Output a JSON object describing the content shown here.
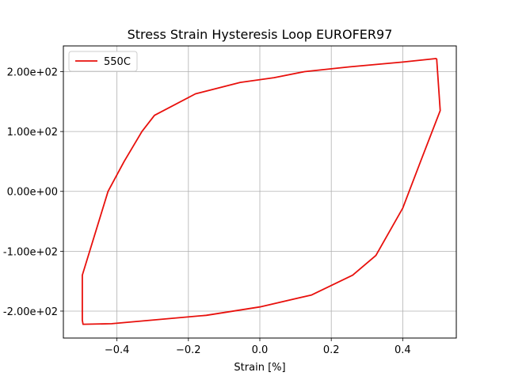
{
  "chart_data": {
    "type": "line",
    "title": "Stress Strain Hysteresis Loop EUROFER97",
    "xlabel": "Strain  [%]",
    "ylabel": "",
    "xlim": [
      -0.55,
      0.55
    ],
    "ylim": [
      -245,
      243
    ],
    "grid": true,
    "legend_position": "top-left",
    "x_ticks": [
      -0.4,
      -0.2,
      0.0,
      0.2,
      0.4
    ],
    "x_tick_labels": [
      "−0.4",
      "−0.2",
      "0.0",
      "0.2",
      "0.4"
    ],
    "y_ticks": [
      -200,
      -100,
      0,
      100,
      200
    ],
    "y_tick_labels": [
      "-2.00e+02",
      "-1.00e+02",
      "0.00e+00",
      "1.00e+02",
      "2.00e+02"
    ],
    "series": [
      {
        "name": "550C",
        "color": "#e8100c",
        "x": [
          0.495,
          0.505,
          0.45,
          0.4,
          0.325,
          0.26,
          0.145,
          0.0,
          -0.15,
          -0.415,
          -0.495,
          -0.497,
          -0.497,
          -0.425,
          -0.38,
          -0.33,
          -0.295,
          -0.18,
          -0.055,
          0.04,
          0.125,
          0.25,
          0.4,
          0.495
        ],
        "y": [
          222,
          135,
          50,
          -28,
          -107,
          -140,
          -173,
          -193,
          -207,
          -221,
          -222,
          -215,
          -140,
          0,
          50,
          100,
          127,
          163,
          182,
          190,
          200,
          208,
          216,
          222
        ]
      }
    ]
  }
}
